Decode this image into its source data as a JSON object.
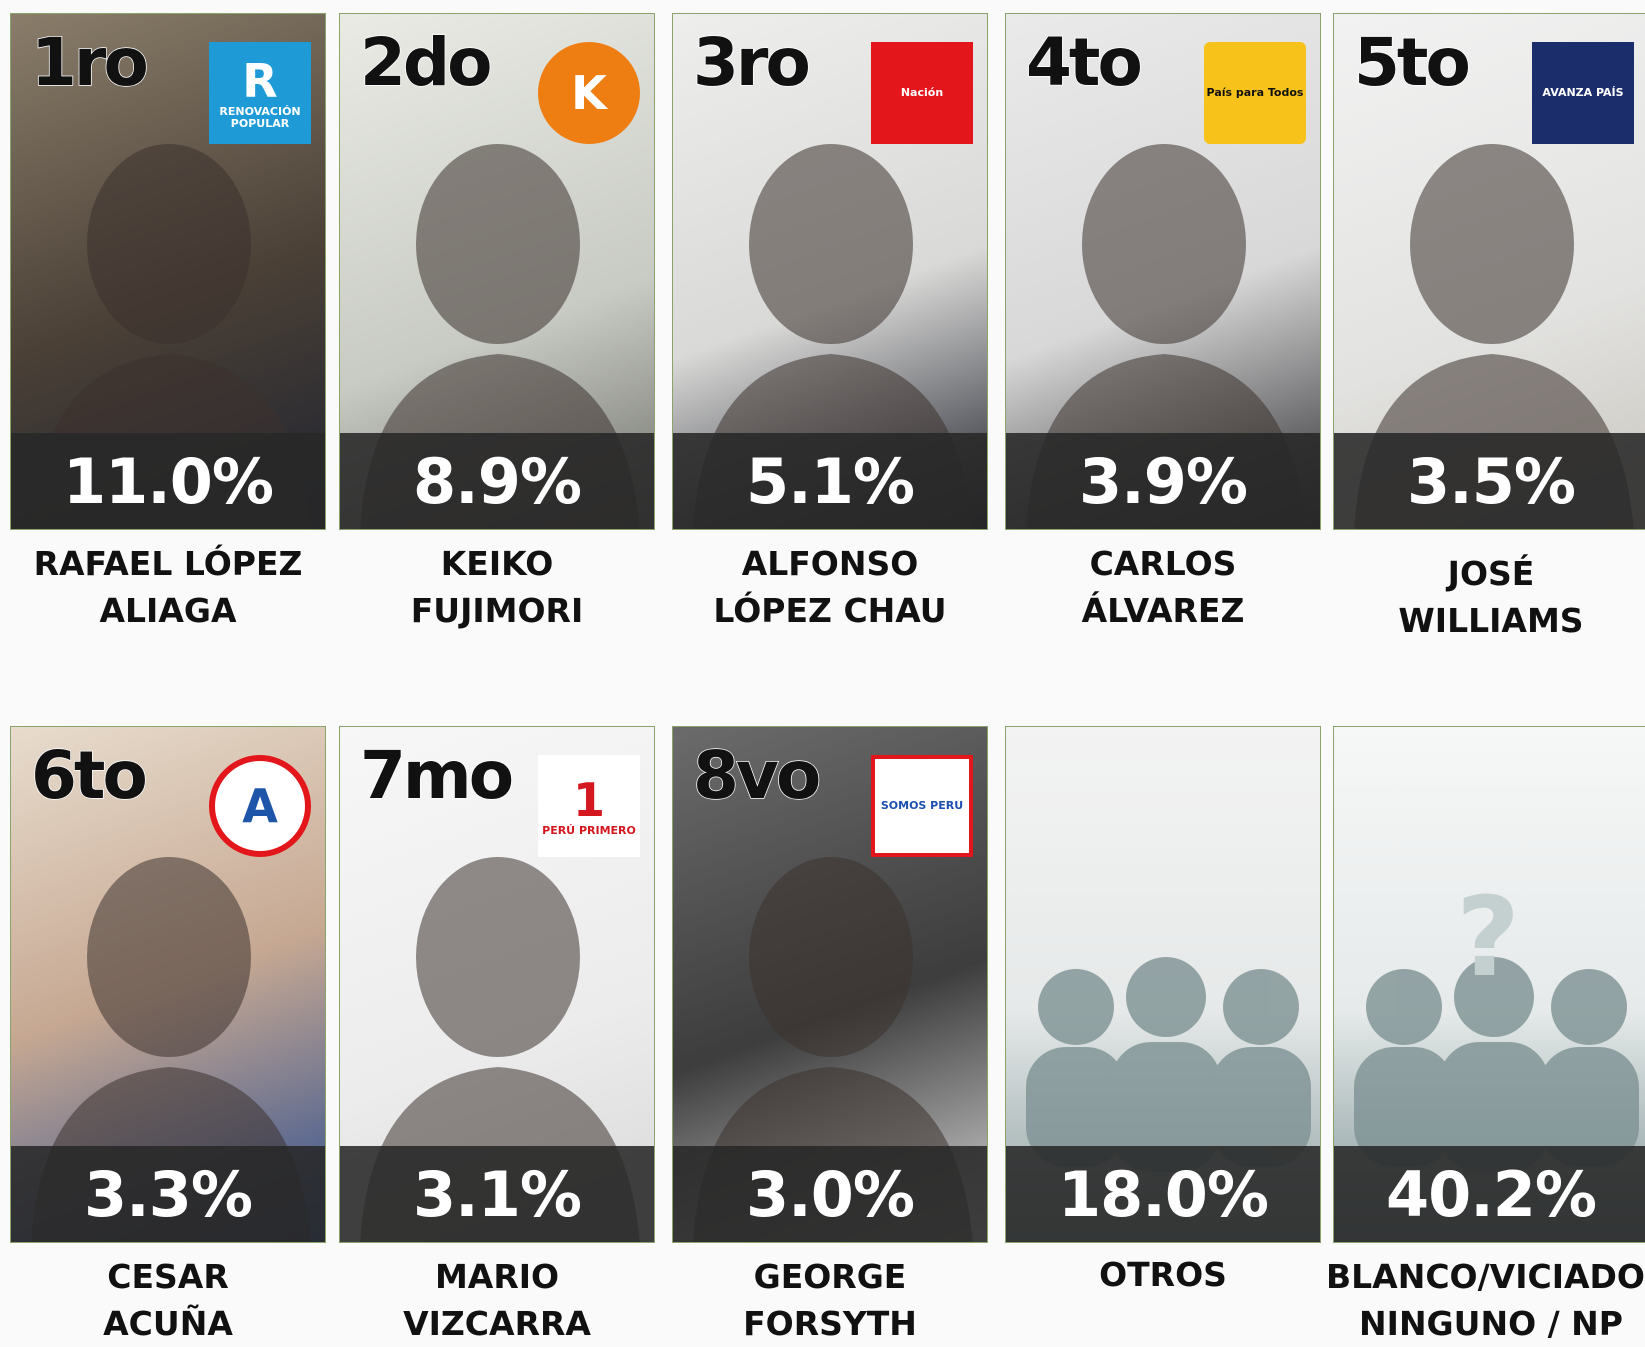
{
  "cards": [
    {
      "rank": "1ro",
      "logo": {
        "mark": "R",
        "text": "RENOVACIÓN POPULAR"
      },
      "percent": "11.0%",
      "name_lines": [
        "RAFAEL LÓPEZ",
        "ALIAGA"
      ]
    },
    {
      "rank": "2do",
      "logo": {
        "mark": "K"
      },
      "percent": "8.9%",
      "name_lines": [
        "KEIKO",
        "FUJIMORI"
      ]
    },
    {
      "rank": "3ro",
      "logo": {
        "text": "Nación"
      },
      "percent": "5.1%",
      "name_lines": [
        "ALFONSO",
        "LÓPEZ CHAU"
      ]
    },
    {
      "rank": "4to",
      "logo": {
        "text": "País para Todos"
      },
      "percent": "3.9%",
      "name_lines": [
        "CARLOS",
        "ÁLVAREZ"
      ]
    },
    {
      "rank": "5to",
      "logo": {
        "text": "AVANZA PAÍS"
      },
      "percent": "3.5%",
      "name_lines": [
        "JOSÉ",
        "WILLIAMS"
      ]
    },
    {
      "rank": "6to",
      "logo": {
        "mark": "A"
      },
      "percent": "3.3%",
      "name_lines": [
        "CESAR",
        "ACUÑA"
      ]
    },
    {
      "rank": "7mo",
      "logo": {
        "mark": "1",
        "text": "PERÚ PRIMERO"
      },
      "percent": "3.1%",
      "name_lines": [
        "MARIO",
        "VIZCARRA"
      ]
    },
    {
      "rank": "8vo",
      "logo": {
        "text": "SOMOS PERU"
      },
      "percent": "3.0%",
      "name_lines": [
        "GEORGE",
        "FORSYTH"
      ]
    },
    {
      "percent": "18.0%",
      "name_lines": [
        "OTROS"
      ]
    },
    {
      "logo": {
        "mark": "?"
      },
      "percent": "40.2%",
      "name_lines": [
        "BLANCO/VICIADO/",
        "NINGUNO / NP"
      ]
    }
  ]
}
